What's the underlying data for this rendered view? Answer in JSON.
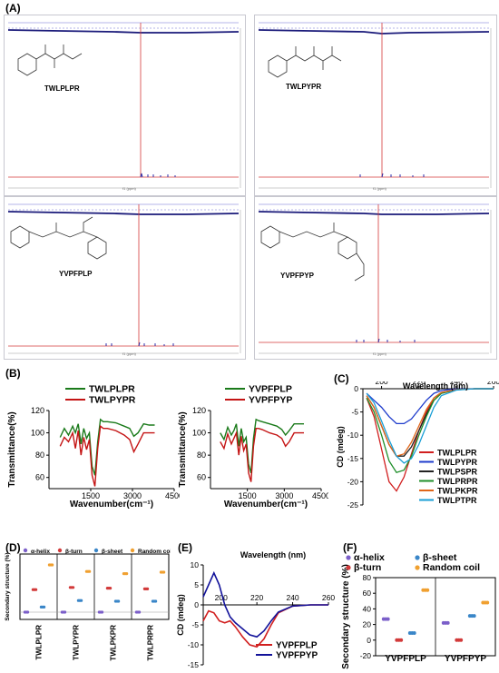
{
  "figure": {
    "panels": {
      "A": "(A)",
      "B": "(B)",
      "C": "(C)",
      "D": "(D)",
      "E": "(E)",
      "F": "(F)"
    }
  },
  "nmr": {
    "peptides": [
      "TWLPLPR",
      "TWLPYPR",
      "YVPFPLP",
      "YVPFPYP"
    ],
    "xlabel": "f1 (ppm)"
  },
  "chart_data": [
    {
      "id": "B-left",
      "type": "line",
      "xlabel": "Wavenumber(cm⁻¹)",
      "ylabel": "Transmittance(%)",
      "xlim": [
        0,
        4500
      ],
      "ylim": [
        50,
        120
      ],
      "xticks": [
        1500,
        3000,
        4500
      ],
      "yticks": [
        60,
        80,
        100,
        120
      ],
      "legend_position": "top-right",
      "series": [
        {
          "name": "TWLPLPR",
          "color": "#1a7a1a",
          "x": [
            400,
            550,
            700,
            850,
            950,
            1050,
            1150,
            1250,
            1350,
            1450,
            1550,
            1650,
            1750,
            1850,
            1950,
            2100,
            2400,
            2700,
            2900,
            3050,
            3200,
            3400,
            3600,
            3800
          ],
          "y": [
            96,
            104,
            98,
            106,
            100,
            108,
            90,
            104,
            95,
            100,
            70,
            62,
            92,
            112,
            110,
            110,
            109,
            106,
            104,
            97,
            100,
            108,
            107,
            107
          ]
        },
        {
          "name": "TWLPYPR",
          "color": "#c41414",
          "x": [
            400,
            550,
            700,
            850,
            950,
            1050,
            1150,
            1250,
            1350,
            1450,
            1550,
            1650,
            1750,
            1850,
            1950,
            2100,
            2400,
            2700,
            2900,
            3050,
            3200,
            3400,
            3600,
            3800
          ],
          "y": [
            88,
            96,
            92,
            100,
            86,
            102,
            80,
            96,
            85,
            94,
            62,
            52,
            86,
            106,
            104,
            104,
            102,
            98,
            94,
            83,
            90,
            100,
            100,
            100
          ]
        }
      ]
    },
    {
      "id": "B-right",
      "type": "line",
      "xlabel": "Wavenumber(cm⁻¹)",
      "ylabel": "Transmittance(%)",
      "xlim": [
        0,
        4500
      ],
      "ylim": [
        50,
        120
      ],
      "xticks": [
        1500,
        3000,
        4500
      ],
      "yticks": [
        60,
        80,
        100,
        120
      ],
      "legend_position": "top-right",
      "series": [
        {
          "name": "YVPFPLP",
          "color": "#1a7a1a",
          "x": [
            400,
            550,
            700,
            850,
            950,
            1050,
            1150,
            1250,
            1350,
            1450,
            1550,
            1650,
            1750,
            1850,
            1950,
            2100,
            2400,
            2700,
            2900,
            3050,
            3200,
            3400,
            3600,
            3800
          ],
          "y": [
            100,
            94,
            105,
            98,
            102,
            108,
            88,
            104,
            92,
            96,
            72,
            64,
            95,
            112,
            111,
            110,
            108,
            106,
            103,
            98,
            102,
            108,
            108,
            108
          ]
        },
        {
          "name": "YVPFPYP",
          "color": "#c41414",
          "x": [
            400,
            550,
            700,
            850,
            950,
            1050,
            1150,
            1250,
            1350,
            1450,
            1550,
            1650,
            1750,
            1850,
            1950,
            2100,
            2400,
            2700,
            2900,
            3050,
            3200,
            3400,
            3600,
            3800
          ],
          "y": [
            92,
            86,
            99,
            90,
            95,
            100,
            80,
            97,
            84,
            90,
            64,
            56,
            88,
            104,
            104,
            103,
            100,
            98,
            95,
            88,
            92,
            100,
            100,
            100
          ]
        }
      ]
    },
    {
      "id": "C",
      "type": "line",
      "title": "Wavelength (nm)",
      "ylabel": "CD (mdeg)",
      "xlim": [
        190,
        260
      ],
      "ylim": [
        -25,
        0
      ],
      "xticks": [
        200,
        220,
        240,
        260
      ],
      "yticks": [
        0,
        -5,
        -10,
        -15,
        -20,
        -25
      ],
      "legend_position": "bottom-right",
      "series": [
        {
          "name": "TWLPLPR",
          "color": "#d11f1f",
          "x": [
            192,
            196,
            200,
            204,
            208,
            212,
            216,
            220,
            224,
            228,
            232,
            240,
            250,
            260
          ],
          "y": [
            -2,
            -6,
            -13,
            -20,
            -22,
            -19,
            -14,
            -9,
            -5,
            -2,
            -0.8,
            -0.2,
            0,
            0
          ]
        },
        {
          "name": "TWLPYPR",
          "color": "#1f3ccc",
          "x": [
            192,
            196,
            200,
            204,
            208,
            212,
            216,
            220,
            224,
            228,
            232,
            240,
            250,
            260
          ],
          "y": [
            -1,
            -2.5,
            -4,
            -6,
            -7.5,
            -7.5,
            -6.5,
            -4.5,
            -2.5,
            -1,
            -0.4,
            0,
            0,
            0
          ]
        },
        {
          "name": "TWLPSPR",
          "color": "#222222",
          "x": [
            192,
            196,
            200,
            204,
            208,
            212,
            216,
            220,
            224,
            228,
            232,
            240,
            250,
            260
          ],
          "y": [
            -1.5,
            -4,
            -8,
            -12,
            -14.5,
            -14.5,
            -12.5,
            -9,
            -5.5,
            -2.5,
            -1,
            -0.2,
            0,
            0
          ]
        },
        {
          "name": "TWLPRPR",
          "color": "#1f8f2a",
          "x": [
            192,
            196,
            200,
            204,
            208,
            212,
            216,
            220,
            224,
            228,
            232,
            240,
            250,
            260
          ],
          "y": [
            -2,
            -5,
            -10,
            -15.5,
            -18,
            -17.5,
            -14.5,
            -10,
            -6,
            -2.5,
            -1,
            -0.2,
            0,
            0
          ]
        },
        {
          "name": "TWLPKPR",
          "color": "#e0661a",
          "x": [
            192,
            196,
            200,
            204,
            208,
            212,
            216,
            220,
            224,
            228,
            232,
            240,
            250,
            260
          ],
          "y": [
            -1.5,
            -4,
            -8,
            -12,
            -14.5,
            -14,
            -11.5,
            -8,
            -4.5,
            -2,
            -0.8,
            -0.2,
            0,
            0
          ]
        },
        {
          "name": "TWLPTPR",
          "color": "#1a9fd6",
          "x": [
            192,
            196,
            200,
            204,
            208,
            212,
            216,
            220,
            224,
            228,
            232,
            240,
            250,
            260
          ],
          "y": [
            -1,
            -3,
            -7,
            -11,
            -14.5,
            -16,
            -15,
            -12,
            -8,
            -4,
            -1.5,
            -0.3,
            0,
            0
          ]
        }
      ]
    },
    {
      "id": "D",
      "type": "scatter",
      "ylabel": "Secondary structure (%)",
      "ylim": [
        -10,
        80
      ],
      "categories": [
        "TWLPLPR",
        "TWLPYPR",
        "TWLPKPR",
        "TWLPRPR"
      ],
      "legend_position": "top",
      "series": [
        {
          "name": "α-helix",
          "color": "#7b5fc9",
          "values": [
            0,
            0,
            0,
            0
          ]
        },
        {
          "name": "β-turn",
          "color": "#d23a3a",
          "values": [
            31,
            34,
            33,
            32
          ]
        },
        {
          "name": "β-sheet",
          "color": "#3a86c8",
          "values": [
            7,
            16,
            15,
            15
          ]
        },
        {
          "name": "Random coil",
          "color": "#f0a030",
          "values": [
            65,
            56,
            53,
            55
          ]
        }
      ]
    },
    {
      "id": "E",
      "type": "line",
      "title": "Wavelength (nm)",
      "ylabel": "CD (mdeg)",
      "xlim": [
        190,
        260
      ],
      "ylim": [
        -15,
        10
      ],
      "xticks": [
        200,
        220,
        240,
        260
      ],
      "yticks": [
        10,
        5,
        0,
        -5,
        -10,
        -15
      ],
      "legend_position": "bottom-right",
      "series": [
        {
          "name": "YVPFPLP",
          "color": "#d11f1f",
          "x": [
            190,
            193,
            196,
            199,
            202,
            205,
            208,
            212,
            216,
            220,
            224,
            228,
            232,
            240,
            250,
            260
          ],
          "y": [
            -4,
            -1.5,
            -2,
            -4,
            -4.5,
            -4,
            -5.5,
            -8,
            -10,
            -10.5,
            -8.5,
            -5,
            -2,
            -0.3,
            0,
            0
          ]
        },
        {
          "name": "YVPFPYP",
          "color": "#12129a",
          "x": [
            190,
            193,
            196,
            199,
            202,
            205,
            208,
            212,
            216,
            220,
            224,
            228,
            232,
            240,
            250,
            260
          ],
          "y": [
            2,
            5,
            8,
            5,
            0,
            -3,
            -4.5,
            -6,
            -7.5,
            -8,
            -6.5,
            -4,
            -1.8,
            -0.3,
            0,
            0
          ]
        }
      ]
    },
    {
      "id": "F",
      "type": "scatter",
      "ylabel": "Secondary structure (%)",
      "ylim": [
        -20,
        80
      ],
      "yticks": [
        -20,
        0,
        20,
        40,
        60,
        80
      ],
      "categories": [
        "YVPFPLP",
        "YVPFPYP"
      ],
      "legend_position": "top",
      "series": [
        {
          "name": "α-helix",
          "color": "#7b5fc9",
          "values": [
            27,
            22
          ]
        },
        {
          "name": "β-turn",
          "color": "#d23a3a",
          "values": [
            0,
            0
          ]
        },
        {
          "name": "β-sheet",
          "color": "#3a86c8",
          "values": [
            9,
            31
          ]
        },
        {
          "name": "Random coil",
          "color": "#f0a030",
          "values": [
            64,
            48
          ]
        }
      ]
    }
  ]
}
